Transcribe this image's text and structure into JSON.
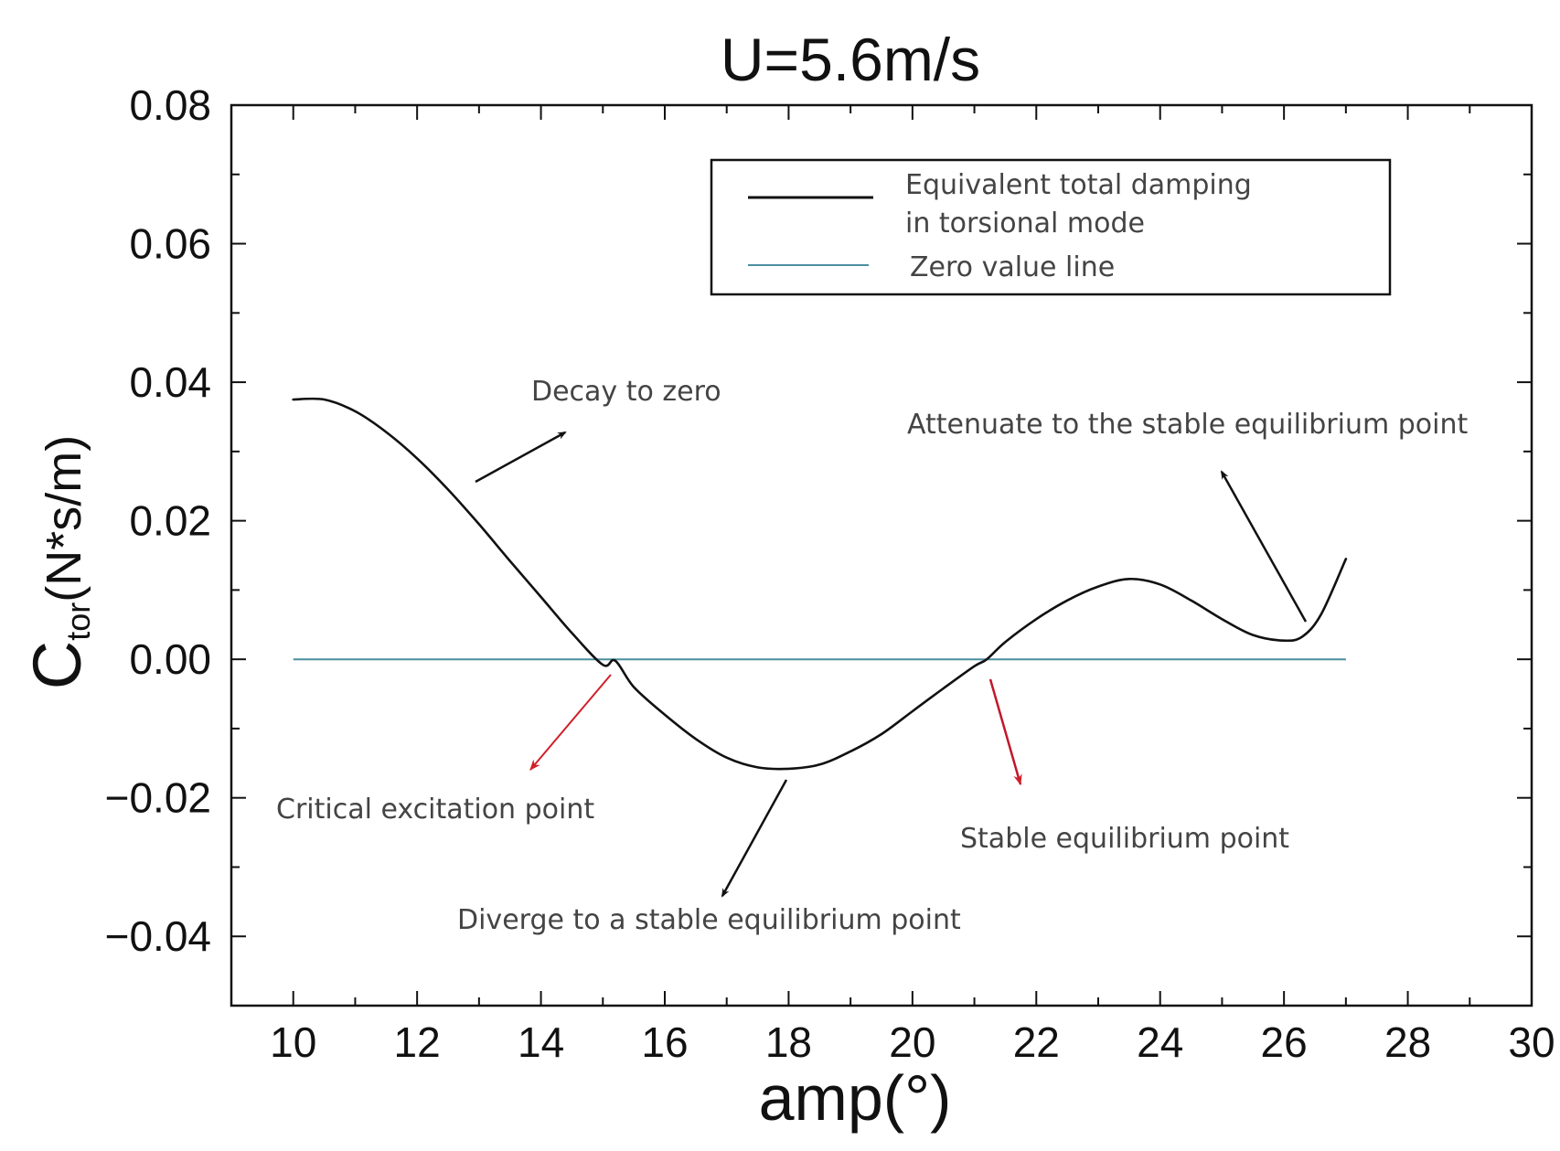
{
  "chart_data": {
    "type": "line",
    "title": "U=5.6m/s",
    "xlabel": "amp(°)",
    "ylabel_main": "C",
    "ylabel_sub": "tor",
    "ylabel_unit": "(N*s/m)",
    "xlim": [
      9,
      30
    ],
    "ylim": [
      -0.05,
      0.08
    ],
    "x_ticks": [
      10,
      12,
      14,
      16,
      18,
      20,
      22,
      24,
      26,
      28,
      30
    ],
    "x_tick_labels": [
      "10",
      "12",
      "14",
      "16",
      "18",
      "20",
      "22",
      "24",
      "26",
      "28",
      "30"
    ],
    "y_ticks": [
      0.08,
      0.06,
      0.04,
      0.02,
      0.0,
      -0.02,
      -0.04
    ],
    "y_tick_labels": [
      "0.08",
      "0.06",
      "0.04",
      "0.02",
      "0.00",
      "−0.02",
      "−0.04"
    ],
    "grid": false,
    "legend_position": "top-right",
    "series": [
      {
        "name": "Equivalent total damping in torsional mode",
        "name_lines": [
          "Equivalent total damping",
          " in torsional mode"
        ],
        "color": "#111111",
        "x": [
          10,
          10.5,
          11,
          11.5,
          12,
          12.5,
          13,
          13.5,
          14,
          14.5,
          15,
          15.2,
          15.5,
          16,
          16.5,
          17,
          17.5,
          18,
          18.5,
          19,
          19.5,
          20,
          20.5,
          21,
          21.2,
          21.5,
          22,
          22.5,
          23,
          23.5,
          24,
          24.5,
          25,
          25.5,
          26,
          26.3,
          26.6,
          27
        ],
        "y": [
          0.0375,
          0.0375,
          0.0358,
          0.0328,
          0.029,
          0.0245,
          0.0195,
          0.0142,
          0.009,
          0.0038,
          -0.0008,
          -0.0002,
          -0.004,
          -0.008,
          -0.0115,
          -0.0142,
          -0.0156,
          -0.0158,
          -0.0152,
          -0.0133,
          -0.0108,
          -0.0075,
          -0.0042,
          -0.001,
          0.0,
          0.0025,
          0.0058,
          0.0085,
          0.0105,
          0.0116,
          0.0108,
          0.0085,
          0.0058,
          0.0035,
          0.0027,
          0.0033,
          0.0065,
          0.0145
        ]
      },
      {
        "name": "Zero value line",
        "color": "#4a8fa0",
        "x": [
          10,
          27
        ],
        "y": [
          0,
          0
        ]
      }
    ],
    "annotations": [
      {
        "text": "Decay to zero",
        "color": "#111111"
      },
      {
        "text": "Attenuate to the stable equilibrium point",
        "color": "#111111"
      },
      {
        "text": "Critical excitation point",
        "color": "#d0202a"
      },
      {
        "text": "Diverge to a stable equilibrium point",
        "color": "#111111"
      },
      {
        "text": "Stable equilibrium point",
        "color": "#c0182a"
      }
    ]
  }
}
